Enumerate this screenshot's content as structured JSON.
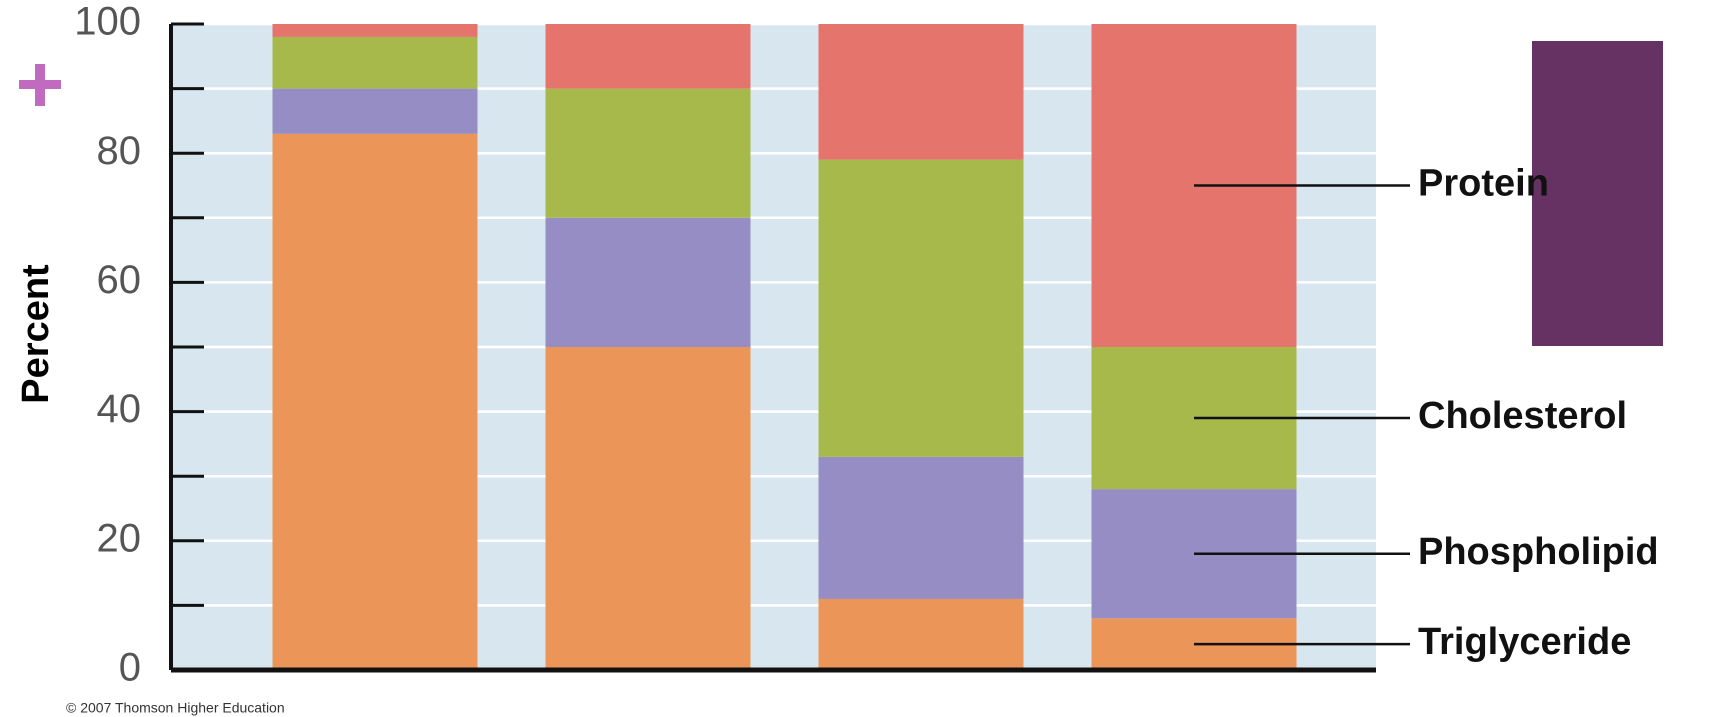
{
  "chart_data": {
    "type": "stacked_bar",
    "y_label": "Percent",
    "categories": [
      null,
      null,
      null,
      null
    ],
    "series": [
      {
        "name": "Triglyceride",
        "color": "#ec9559",
        "values": [
          83,
          50,
          11,
          8
        ]
      },
      {
        "name": "Phospholipid",
        "color": "#958dc4",
        "values": [
          7,
          20,
          22,
          20
        ]
      },
      {
        "name": "Cholesterol",
        "color": "#a8b94c",
        "values": [
          8,
          20,
          46,
          22
        ]
      },
      {
        "name": "Protein",
        "color": "#e5746d",
        "values": [
          2,
          10,
          21,
          50
        ]
      }
    ],
    "ylim": [
      0,
      100
    ],
    "yticks": [
      0,
      20,
      40,
      60,
      80,
      100
    ],
    "minor_yticks": [
      10,
      30,
      50,
      70,
      90
    ],
    "grid": true,
    "legend": "right",
    "credit": "© 2007 Thomson Higher Education"
  }
}
